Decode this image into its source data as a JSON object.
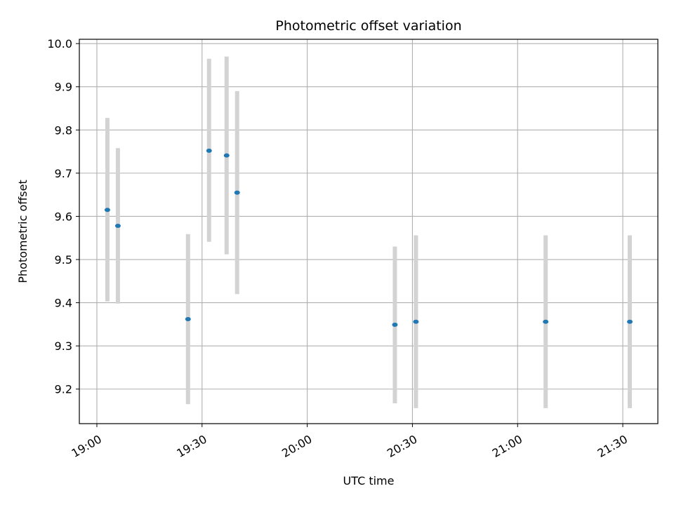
{
  "chart_data": {
    "type": "scatter",
    "title": "Photometric offset variation",
    "xlabel": "UTC time",
    "ylabel": "Photometric offset",
    "x_ticks": [
      "19:00",
      "19:30",
      "20:00",
      "20:30",
      "21:00",
      "21:30"
    ],
    "y_ticks": [
      "9.2",
      "9.3",
      "9.4",
      "9.5",
      "9.6",
      "9.7",
      "9.8",
      "9.9",
      "10.0"
    ],
    "xlim": [
      "18:55",
      "21:40"
    ],
    "ylim": [
      9.12,
      10.01
    ],
    "grid": true,
    "colors": {
      "marker": "#1f77b4",
      "errorbar": "#d3d3d3",
      "grid": "#b0b0b0"
    },
    "series": [
      {
        "points": [
          {
            "x": "19:03",
            "y": 9.615,
            "ylow": 9.403,
            "yhigh": 9.828
          },
          {
            "x": "19:06",
            "y": 9.578,
            "ylow": 9.398,
            "yhigh": 9.758
          },
          {
            "x": "19:26",
            "y": 9.362,
            "ylow": 9.165,
            "yhigh": 9.559
          },
          {
            "x": "19:32",
            "y": 9.752,
            "ylow": 9.541,
            "yhigh": 9.965
          },
          {
            "x": "19:37",
            "y": 9.741,
            "ylow": 9.512,
            "yhigh": 9.97
          },
          {
            "x": "19:40",
            "y": 9.655,
            "ylow": 9.42,
            "yhigh": 9.89
          },
          {
            "x": "20:25",
            "y": 9.349,
            "ylow": 9.167,
            "yhigh": 9.53
          },
          {
            "x": "20:31",
            "y": 9.356,
            "ylow": 9.156,
            "yhigh": 9.556
          },
          {
            "x": "21:08",
            "y": 9.356,
            "ylow": 9.156,
            "yhigh": 9.556
          },
          {
            "x": "21:32",
            "y": 9.356,
            "ylow": 9.156,
            "yhigh": 9.556
          }
        ]
      }
    ]
  }
}
